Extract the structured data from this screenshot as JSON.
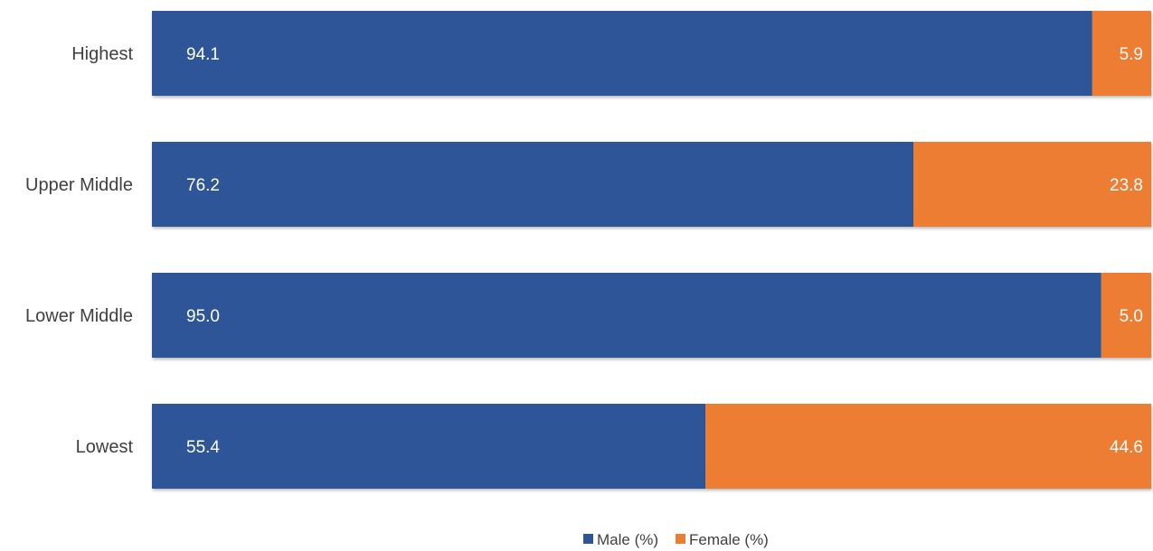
{
  "chart_data": {
    "type": "bar",
    "orientation": "horizontal",
    "stacked": true,
    "categories": [
      "Highest",
      "Upper Middle",
      "Lower Middle",
      "Lowest"
    ],
    "series": [
      {
        "name": "Male (%)",
        "values": [
          94.1,
          76.2,
          95.0,
          55.4
        ],
        "color": "#2F5597"
      },
      {
        "name": "Female (%)",
        "values": [
          5.9,
          23.8,
          5.0,
          44.6
        ],
        "color": "#ED7D31"
      }
    ],
    "value_labels": {
      "Male (%)": [
        "94.1",
        "76.2",
        "95.0",
        "55.4"
      ],
      "Female (%)": [
        "5.9",
        "23.8",
        "5.0",
        "44.6"
      ]
    },
    "title": "",
    "xlabel": "",
    "ylabel": "",
    "xlim": [
      0,
      100
    ],
    "grid": false,
    "legend": "bottom"
  }
}
